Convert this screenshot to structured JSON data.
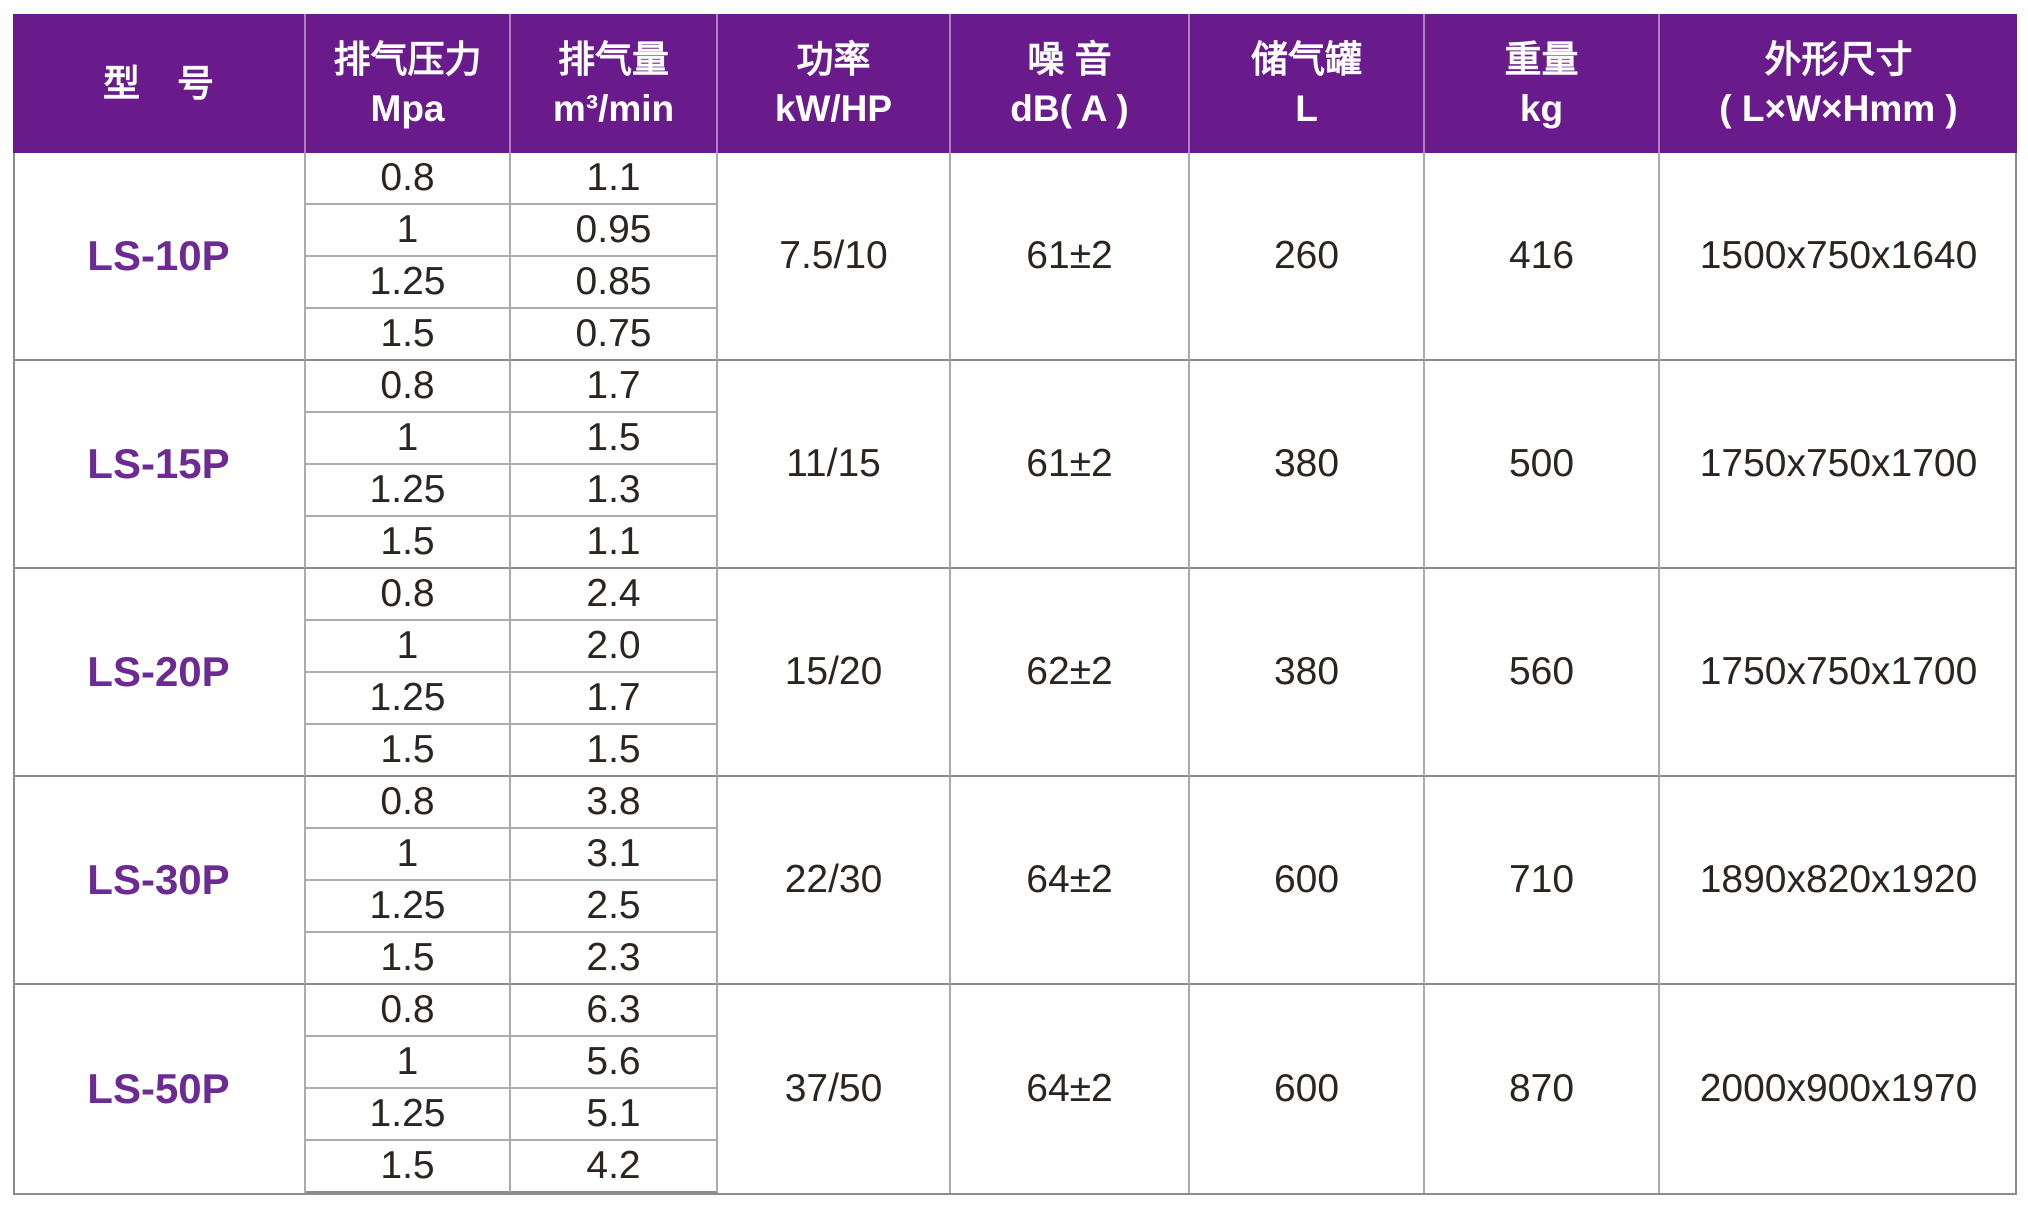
{
  "table": {
    "header": {
      "model": {
        "label": "型　号",
        "unit": ""
      },
      "pressure": {
        "label": "排气压力",
        "unit": "Mpa"
      },
      "volume": {
        "label": "排气量",
        "unit": "m³/min"
      },
      "power": {
        "label": "功率",
        "unit": "kW/HP"
      },
      "noise": {
        "label": "噪 音",
        "unit": "dB( A )"
      },
      "tank": {
        "label": "储气罐",
        "unit": "L"
      },
      "weight": {
        "label": "重量",
        "unit": "kg"
      },
      "dims": {
        "label": "外形尺寸",
        "unit": "( L×W×Hmm )"
      }
    },
    "rows": [
      {
        "model": "LS-10P",
        "pressures": [
          "0.8",
          "1",
          "1.25",
          "1.5"
        ],
        "volumes": [
          "1.1",
          "0.95",
          "0.85",
          "0.75"
        ],
        "power": "7.5/10",
        "noise": "61±2",
        "tank": "260",
        "weight": "416",
        "dims": "1500x750x1640"
      },
      {
        "model": "LS-15P",
        "pressures": [
          "0.8",
          "1",
          "1.25",
          "1.5"
        ],
        "volumes": [
          "1.7",
          "1.5",
          "1.3",
          "1.1"
        ],
        "power": "11/15",
        "noise": "61±2",
        "tank": "380",
        "weight": "500",
        "dims": "1750x750x1700"
      },
      {
        "model": "LS-20P",
        "pressures": [
          "0.8",
          "1",
          "1.25",
          "1.5"
        ],
        "volumes": [
          "2.4",
          "2.0",
          "1.7",
          "1.5"
        ],
        "power": "15/20",
        "noise": "62±2",
        "tank": "380",
        "weight": "560",
        "dims": "1750x750x1700"
      },
      {
        "model": "LS-30P",
        "pressures": [
          "0.8",
          "1",
          "1.25",
          "1.5"
        ],
        "volumes": [
          "3.8",
          "3.1",
          "2.5",
          "2.3"
        ],
        "power": "22/30",
        "noise": "64±2",
        "tank": "600",
        "weight": "710",
        "dims": "1890x820x1920"
      },
      {
        "model": "LS-50P",
        "pressures": [
          "0.8",
          "1",
          "1.25",
          "1.5"
        ],
        "volumes": [
          "6.3",
          "5.6",
          "5.1",
          "4.2"
        ],
        "power": "37/50",
        "noise": "64±2",
        "tank": "600",
        "weight": "870",
        "dims": "2000x900x1970"
      }
    ]
  },
  "colors": {
    "header_bg": "#6A1B8B",
    "header_text": "#FFFFFF",
    "model_text": "#6C2A93",
    "body_text": "#2B2422",
    "grid_line": "#ABABAB",
    "block_line": "#8C8C8C"
  },
  "chart_data": {
    "type": "table",
    "title": "",
    "columns": [
      "型　号",
      "排气压力 Mpa",
      "排气量 m³/min",
      "功率 kW/HP",
      "噪 音 dB( A )",
      "储气罐 L",
      "重量 kg",
      "外形尺寸 ( L×W×Hmm )"
    ],
    "rows": [
      [
        "LS-10P",
        "0.8",
        "1.1",
        "7.5/10",
        "61±2",
        "260",
        "416",
        "1500x750x1640"
      ],
      [
        "LS-10P",
        "1",
        "0.95",
        "7.5/10",
        "61±2",
        "260",
        "416",
        "1500x750x1640"
      ],
      [
        "LS-10P",
        "1.25",
        "0.85",
        "7.5/10",
        "61±2",
        "260",
        "416",
        "1500x750x1640"
      ],
      [
        "LS-10P",
        "1.5",
        "0.75",
        "7.5/10",
        "61±2",
        "260",
        "416",
        "1500x750x1640"
      ],
      [
        "LS-15P",
        "0.8",
        "1.7",
        "11/15",
        "61±2",
        "380",
        "500",
        "1750x750x1700"
      ],
      [
        "LS-15P",
        "1",
        "1.5",
        "11/15",
        "61±2",
        "380",
        "500",
        "1750x750x1700"
      ],
      [
        "LS-15P",
        "1.25",
        "1.3",
        "11/15",
        "61±2",
        "380",
        "500",
        "1750x750x1700"
      ],
      [
        "LS-15P",
        "1.5",
        "1.1",
        "11/15",
        "61±2",
        "380",
        "500",
        "1750x750x1700"
      ],
      [
        "LS-20P",
        "0.8",
        "2.4",
        "15/20",
        "62±2",
        "380",
        "560",
        "1750x750x1700"
      ],
      [
        "LS-20P",
        "1",
        "2.0",
        "15/20",
        "62±2",
        "380",
        "560",
        "1750x750x1700"
      ],
      [
        "LS-20P",
        "1.25",
        "1.7",
        "15/20",
        "62±2",
        "380",
        "560",
        "1750x750x1700"
      ],
      [
        "LS-20P",
        "1.5",
        "1.5",
        "15/20",
        "62±2",
        "380",
        "560",
        "1750x750x1700"
      ],
      [
        "LS-30P",
        "0.8",
        "3.8",
        "22/30",
        "64±2",
        "600",
        "710",
        "1890x820x1920"
      ],
      [
        "LS-30P",
        "1",
        "3.1",
        "22/30",
        "64±2",
        "600",
        "710",
        "1890x820x1920"
      ],
      [
        "LS-30P",
        "1.25",
        "2.5",
        "22/30",
        "64±2",
        "600",
        "710",
        "1890x820x1920"
      ],
      [
        "LS-30P",
        "1.5",
        "2.3",
        "22/30",
        "64±2",
        "600",
        "710",
        "1890x820x1920"
      ],
      [
        "LS-50P",
        "0.8",
        "6.3",
        "37/50",
        "64±2",
        "600",
        "870",
        "2000x900x1970"
      ],
      [
        "LS-50P",
        "1",
        "5.6",
        "37/50",
        "64±2",
        "600",
        "870",
        "2000x900x1970"
      ],
      [
        "LS-50P",
        "1.25",
        "5.1",
        "37/50",
        "64±2",
        "600",
        "870",
        "2000x900x1970"
      ],
      [
        "LS-50P",
        "1.5",
        "4.2",
        "37/50",
        "64±2",
        "600",
        "870",
        "2000x900x1970"
      ]
    ]
  }
}
